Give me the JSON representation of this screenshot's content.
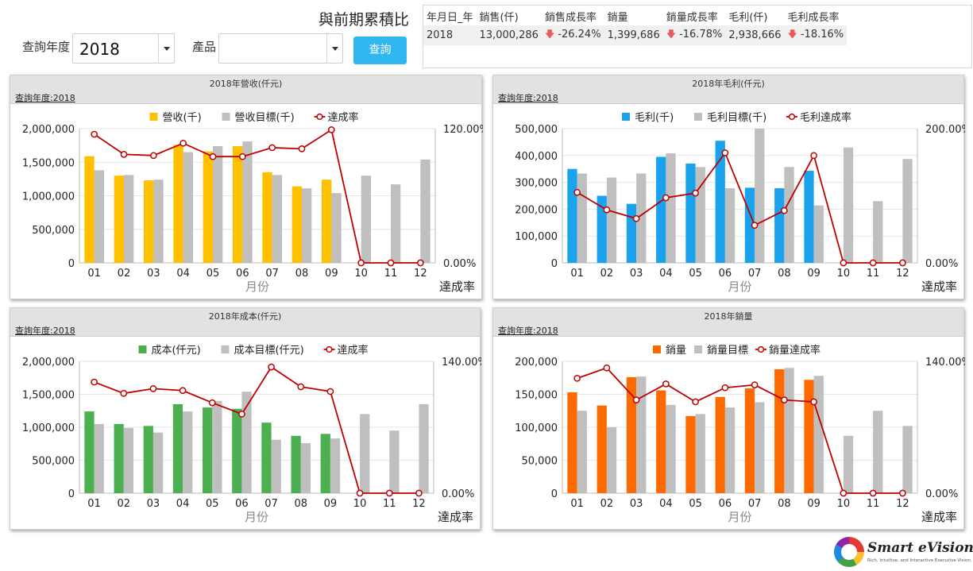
{
  "filters": {
    "year_label": "查詢年度",
    "year_value": "2018",
    "product_label": "產品",
    "product_value": "",
    "query_button": "查詢"
  },
  "summary": {
    "title": "與前期累積比",
    "headers": [
      "年月日_年",
      "銷售(仟)",
      "銷售成長率",
      "銷量",
      "銷量成長率",
      "毛利(仟)",
      "毛利成長率"
    ],
    "row": {
      "year": "2018",
      "sales": "13,000,286",
      "sales_growth": "-26.24%",
      "volume": "1,399,686",
      "volume_growth": "-16.78%",
      "profit": "2,938,666",
      "profit_growth": "-18.16%"
    },
    "trend_icon": "arrow-down-icon",
    "trend_color": "#e85b5b"
  },
  "months": [
    "01",
    "02",
    "03",
    "04",
    "05",
    "06",
    "07",
    "08",
    "09",
    "10",
    "11",
    "12"
  ],
  "panels": [
    {
      "id": "revenue",
      "title": "2018年營收(仟元)",
      "subtitle": "查詢年度:2018",
      "chart_data": {
        "type": "bar",
        "categories": [
          "01",
          "02",
          "03",
          "04",
          "05",
          "06",
          "07",
          "08",
          "09",
          "10",
          "11",
          "12"
        ],
        "series": [
          {
            "name": "營收(千)",
            "color": "#ffc000",
            "values": [
              1590000,
              1300000,
              1230000,
              1760000,
              1660000,
              1740000,
              1350000,
              1140000,
              1240000,
              null,
              null,
              null
            ]
          },
          {
            "name": "營收目標(千)",
            "color": "#bfbfbf",
            "values": [
              1380000,
              1310000,
              1240000,
              1650000,
              1740000,
              1810000,
              1310000,
              1110000,
              1040000,
              1300000,
              1170000,
              1540000
            ]
          },
          {
            "name": "達成率",
            "color": "#c00000",
            "type": "line",
            "axis": "right",
            "values": [
              115,
              97,
              96,
              107,
              95,
              95,
              103,
              102,
              119,
              0,
              0,
              0
            ]
          }
        ],
        "y_ticks": [
          "2,000,000",
          "1,500,000",
          "1,000,000",
          "500,000",
          "0"
        ],
        "ylim": [
          0,
          2000000
        ],
        "y2_ticks": [
          "120.00%",
          "0.00%"
        ],
        "y2lim": [
          0,
          120
        ],
        "xlabel": "月份",
        "y2label": "達成率",
        "legend": "top"
      }
    },
    {
      "id": "profit",
      "title": "2018年毛利(仟元)",
      "subtitle": "查詢年度:2018",
      "chart_data": {
        "type": "bar",
        "categories": [
          "01",
          "02",
          "03",
          "04",
          "05",
          "06",
          "07",
          "08",
          "09",
          "10",
          "11",
          "12"
        ],
        "series": [
          {
            "name": "毛利(千)",
            "color": "#1aa3ec",
            "values": [
              350000,
              250000,
              220000,
              395000,
              370000,
              455000,
              280000,
              278000,
              343000,
              null,
              null,
              null
            ]
          },
          {
            "name": "毛利目標(千)",
            "color": "#bfbfbf",
            "values": [
              333000,
              318000,
              333000,
              408000,
              357000,
              278000,
              500000,
              357000,
              214000,
              430000,
              230000,
              387000
            ]
          },
          {
            "name": "毛利達成率",
            "color": "#c00000",
            "type": "line",
            "axis": "right",
            "values": [
              105,
              79,
              66,
              97,
              104,
              164,
              56,
              78,
              160,
              0,
              0,
              0
            ]
          }
        ],
        "y_ticks": [
          "500,000",
          "400,000",
          "300,000",
          "200,000",
          "100,000",
          "0"
        ],
        "ylim": [
          0,
          500000
        ],
        "y2_ticks": [
          "200.00%",
          "0.00%"
        ],
        "y2lim": [
          0,
          200
        ],
        "xlabel": "月份",
        "y2label": "達成率",
        "legend": "top"
      }
    },
    {
      "id": "cost",
      "title": "2018年成本(仟元)",
      "subtitle": "查詢年度:2018",
      "chart_data": {
        "type": "bar",
        "categories": [
          "01",
          "02",
          "03",
          "04",
          "05",
          "06",
          "07",
          "08",
          "09",
          "10",
          "11",
          "12"
        ],
        "series": [
          {
            "name": "成本(仟元)",
            "color": "#4caf50",
            "values": [
              1240000,
              1050000,
              1020000,
              1350000,
              1300000,
              1280000,
              1070000,
              870000,
              900000,
              null,
              null,
              null
            ]
          },
          {
            "name": "成本目標(仟元)",
            "color": "#bfbfbf",
            "values": [
              1050000,
              990000,
              920000,
              1240000,
              1400000,
              1540000,
              810000,
              760000,
              830000,
              1200000,
              950000,
              1350000
            ]
          },
          {
            "name": "達成率",
            "color": "#c00000",
            "type": "line",
            "axis": "right",
            "values": [
              118,
              106,
              111,
              109,
              96,
              84,
              134,
              113,
              108,
              0,
              0,
              0
            ]
          }
        ],
        "y_ticks": [
          "2,000,000",
          "1,500,000",
          "1,000,000",
          "500,000",
          "0"
        ],
        "ylim": [
          0,
          2000000
        ],
        "y2_ticks": [
          "140.00%",
          "0.00%"
        ],
        "y2lim": [
          0,
          140
        ],
        "xlabel": "月份",
        "y2label": "達成率",
        "legend": "top"
      }
    },
    {
      "id": "volume",
      "title": "2018年銷量",
      "subtitle": "查詢年度:2018",
      "chart_data": {
        "type": "bar",
        "categories": [
          "01",
          "02",
          "03",
          "04",
          "05",
          "06",
          "07",
          "08",
          "09",
          "10",
          "11",
          "12"
        ],
        "series": [
          {
            "name": "銷量",
            "color": "#ff6a00",
            "values": [
              153000,
              133000,
              176000,
              156000,
              117000,
              146000,
              159000,
              188000,
              172000,
              null,
              null,
              null
            ]
          },
          {
            "name": "銷量目標",
            "color": "#bfbfbf",
            "values": [
              125000,
              100000,
              177000,
              134000,
              120000,
              130000,
              138000,
              190000,
              178000,
              87000,
              125000,
              102000
            ]
          },
          {
            "name": "銷量達成率",
            "color": "#c00000",
            "type": "line",
            "axis": "right",
            "values": [
              122,
              133,
              99,
              116,
              97,
              112,
              115,
              99,
              97,
              0,
              0,
              0
            ]
          }
        ],
        "y_ticks": [
          "200,000",
          "150,000",
          "100,000",
          "50,000",
          "0"
        ],
        "ylim": [
          0,
          200000
        ],
        "y2_ticks": [
          "140.00%",
          "0.00%"
        ],
        "y2lim": [
          0,
          140
        ],
        "xlabel": "月份",
        "y2label": "達成率",
        "legend": "top"
      }
    }
  ],
  "logo": {
    "name": "Smart eVision",
    "tagline": "Rich, Intuitive, and Interactive Executive Vision"
  }
}
